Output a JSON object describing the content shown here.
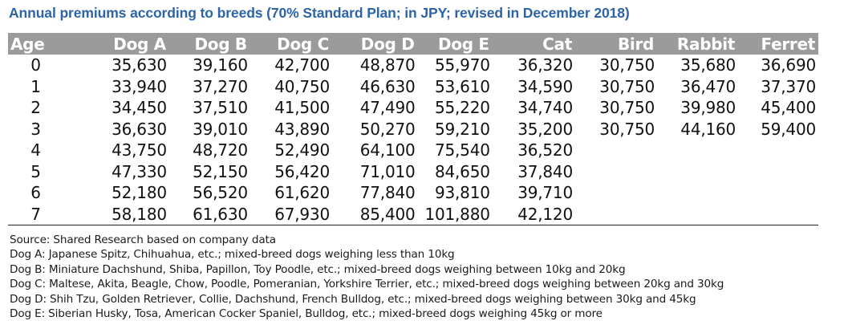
{
  "title": "Annual premiums according to breeds (70% Standard Plan; in JPY; revised in December 2018)",
  "table": {
    "headers": [
      "Age",
      "Dog A",
      "Dog B",
      "Dog C",
      "Dog D",
      "Dog E",
      "Cat",
      "Bird",
      "Rabbit",
      "Ferret"
    ],
    "rows": [
      [
        "0",
        "35,630",
        "39,160",
        "42,700",
        "48,870",
        "55,970",
        "36,320",
        "30,750",
        "35,680",
        "36,690"
      ],
      [
        "1",
        "33,940",
        "37,270",
        "40,750",
        "46,630",
        "53,610",
        "34,590",
        "30,750",
        "36,470",
        "37,370"
      ],
      [
        "2",
        "34,450",
        "37,510",
        "41,500",
        "47,490",
        "55,220",
        "34,740",
        "30,750",
        "39,980",
        "45,400"
      ],
      [
        "3",
        "36,630",
        "39,010",
        "43,890",
        "50,270",
        "59,210",
        "35,200",
        "30,750",
        "44,160",
        "59,400"
      ],
      [
        "4",
        "43,750",
        "48,720",
        "52,490",
        "64,100",
        "75,540",
        "36,520",
        "",
        "",
        ""
      ],
      [
        "5",
        "47,330",
        "52,150",
        "56,420",
        "71,010",
        "84,650",
        "37,840",
        "",
        "",
        ""
      ],
      [
        "6",
        "52,180",
        "56,520",
        "61,620",
        "77,840",
        "93,810",
        "39,710",
        "",
        "",
        ""
      ],
      [
        "7",
        "58,180",
        "61,630",
        "67,930",
        "85,400",
        "101,880",
        "42,120",
        "",
        "",
        ""
      ]
    ]
  },
  "notes": [
    "Source: Shared Research based on company data",
    "Dog A: Japanese Spitz, Chihuahua, etc.; mixed-breed dogs weighing less than 10kg",
    "Dog B: Miniature Dachshund, Shiba, Papillon, Toy Poodle, etc.; mixed-breed dogs weighing between 10kg and 20kg",
    "Dog C: Maltese, Akita, Beagle, Chow, Poodle, Pomeranian, Yorkshire Terrier, etc.; mixed-breed dogs weighing between 20kg and 30kg",
    "Dog D: Shih Tzu, Golden Retriever, Collie, Dachshund, French Bulldog, etc.; mixed-breed dogs weighing between 30kg and 45kg",
    "Dog E: Siberian Husky, Tosa, American Cocker Spaniel, Bulldog, etc.; mixed-breed dogs weighing 45kg or more"
  ],
  "colors": {
    "title": "#2e64a6",
    "header_bg": "#9b9b9b",
    "header_text": "#ffffff",
    "body_text": "#111111"
  }
}
